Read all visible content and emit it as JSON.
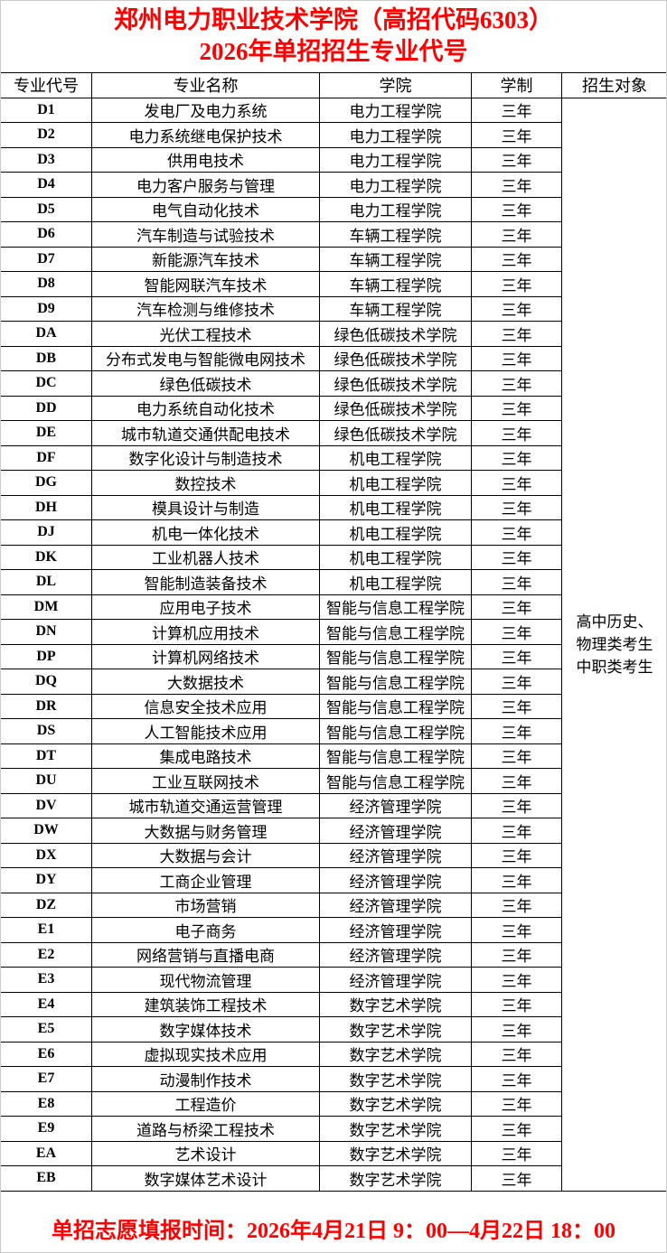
{
  "title_line1": "郑州电力职业技术学院（高招代码6303）",
  "title_line2": "2026年单招招生专业代号",
  "headers": [
    "专业代号",
    "专业名称",
    "学院",
    "学制",
    "招生对象"
  ],
  "target": [
    "高中历史、",
    "物理类考生",
    "中职类考生"
  ],
  "rows": [
    [
      "D1",
      "发电厂及电力系统",
      "电力工程学院",
      "三年"
    ],
    [
      "D2",
      "电力系统继电保护技术",
      "电力工程学院",
      "三年"
    ],
    [
      "D3",
      "供用电技术",
      "电力工程学院",
      "三年"
    ],
    [
      "D4",
      "电力客户服务与管理",
      "电力工程学院",
      "三年"
    ],
    [
      "D5",
      "电气自动化技术",
      "电力工程学院",
      "三年"
    ],
    [
      "D6",
      "汽车制造与试验技术",
      "车辆工程学院",
      "三年"
    ],
    [
      "D7",
      "新能源汽车技术",
      "车辆工程学院",
      "三年"
    ],
    [
      "D8",
      "智能网联汽车技术",
      "车辆工程学院",
      "三年"
    ],
    [
      "D9",
      "汽车检测与维修技术",
      "车辆工程学院",
      "三年"
    ],
    [
      "DA",
      "光伏工程技术",
      "绿色低碳技术学院",
      "三年"
    ],
    [
      "DB",
      "分布式发电与智能微电网技术",
      "绿色低碳技术学院",
      "三年"
    ],
    [
      "DC",
      "绿色低碳技术",
      "绿色低碳技术学院",
      "三年"
    ],
    [
      "DD",
      "电力系统自动化技术",
      "绿色低碳技术学院",
      "三年"
    ],
    [
      "DE",
      "城市轨道交通供配电技术",
      "绿色低碳技术学院",
      "三年"
    ],
    [
      "DF",
      "数字化设计与制造技术",
      "机电工程学院",
      "三年"
    ],
    [
      "DG",
      "数控技术",
      "机电工程学院",
      "三年"
    ],
    [
      "DH",
      "模具设计与制造",
      "机电工程学院",
      "三年"
    ],
    [
      "DJ",
      "机电一体化技术",
      "机电工程学院",
      "三年"
    ],
    [
      "DK",
      "工业机器人技术",
      "机电工程学院",
      "三年"
    ],
    [
      "DL",
      "智能制造装备技术",
      "机电工程学院",
      "三年"
    ],
    [
      "DM",
      "应用电子技术",
      "智能与信息工程学院",
      "三年"
    ],
    [
      "DN",
      "计算机应用技术",
      "智能与信息工程学院",
      "三年"
    ],
    [
      "DP",
      "计算机网络技术",
      "智能与信息工程学院",
      "三年"
    ],
    [
      "DQ",
      "大数据技术",
      "智能与信息工程学院",
      "三年"
    ],
    [
      "DR",
      "信息安全技术应用",
      "智能与信息工程学院",
      "三年"
    ],
    [
      "DS",
      "人工智能技术应用",
      "智能与信息工程学院",
      "三年"
    ],
    [
      "DT",
      "集成电路技术",
      "智能与信息工程学院",
      "三年"
    ],
    [
      "DU",
      "工业互联网技术",
      "智能与信息工程学院",
      "三年"
    ],
    [
      "DV",
      "城市轨道交通运营管理",
      "经济管理学院",
      "三年"
    ],
    [
      "DW",
      "大数据与财务管理",
      "经济管理学院",
      "三年"
    ],
    [
      "DX",
      "大数据与会计",
      "经济管理学院",
      "三年"
    ],
    [
      "DY",
      "工商企业管理",
      "经济管理学院",
      "三年"
    ],
    [
      "DZ",
      "市场营销",
      "经济管理学院",
      "三年"
    ],
    [
      "E1",
      "电子商务",
      "经济管理学院",
      "三年"
    ],
    [
      "E2",
      "网络营销与直播电商",
      "经济管理学院",
      "三年"
    ],
    [
      "E3",
      "现代物流管理",
      "经济管理学院",
      "三年"
    ],
    [
      "E4",
      "建筑装饰工程技术",
      "数字艺术学院",
      "三年"
    ],
    [
      "E5",
      "数字媒体技术",
      "数字艺术学院",
      "三年"
    ],
    [
      "E6",
      "虚拟现实技术应用",
      "数字艺术学院",
      "三年"
    ],
    [
      "E7",
      "动漫制作技术",
      "数字艺术学院",
      "三年"
    ],
    [
      "E8",
      "工程造价",
      "数字艺术学院",
      "三年"
    ],
    [
      "E9",
      "道路与桥梁工程技术",
      "数字艺术学院",
      "三年"
    ],
    [
      "EA",
      "艺术设计",
      "数字艺术学院",
      "三年"
    ],
    [
      "EB",
      "数字媒体艺术设计",
      "数字艺术学院",
      "三年"
    ]
  ],
  "footer": "单招志愿填报时间：2026年4月21日 9：00—4月22日 18：00",
  "colors": {
    "title": "#ff0000",
    "border": "#000000"
  }
}
